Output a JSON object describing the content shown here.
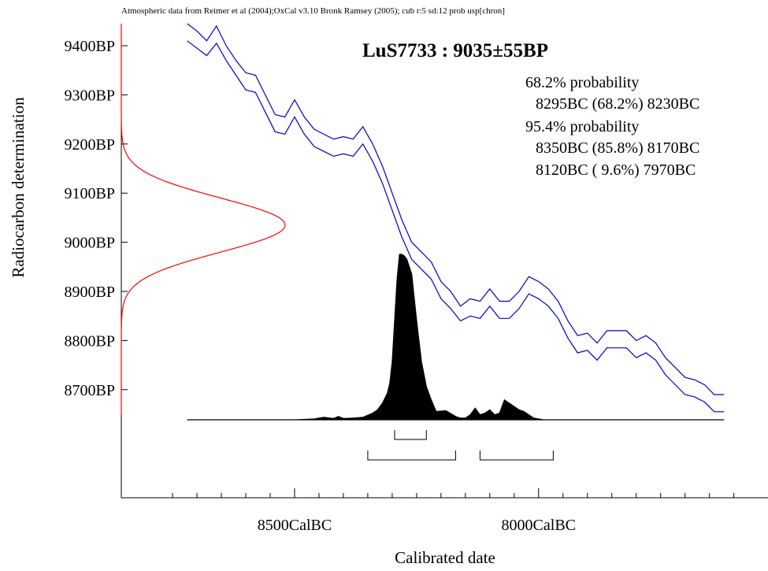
{
  "chart_data": {
    "type": "area",
    "header": "Atmospheric data from Reimer et al (2004);OxCal v3.10 Bronk Ramsey (2005); cub r:5 sd:12 prob usp[chron]",
    "title": "LuS7733 : 9035±55BP",
    "xlabel": "Calibrated date",
    "ylabel": "Radiocarbon determination",
    "x_ticks": [
      {
        "value": -8500,
        "label": "8500CalBC"
      },
      {
        "value": -8000,
        "label": "8000CalBC"
      }
    ],
    "x_minor_ticks": [
      -8750,
      -8700,
      -8650,
      -8600,
      -8550,
      -8450,
      -8400,
      -8350,
      -8300,
      -8250,
      -8200,
      -8150,
      -8100,
      -8050,
      -7950,
      -7900,
      -7850,
      -7800,
      -7750,
      -7700,
      -7650,
      -7600
    ],
    "xlim": [
      -8855,
      -7530
    ],
    "y_ticks": [
      {
        "value": 9400,
        "label": "9400BP"
      },
      {
        "value": 9300,
        "label": "9300BP"
      },
      {
        "value": 9200,
        "label": "9200BP"
      },
      {
        "value": 9100,
        "label": "9100BP"
      },
      {
        "value": 9000,
        "label": "9000BP"
      },
      {
        "value": 8900,
        "label": "8900BP"
      },
      {
        "value": 8800,
        "label": "8800BP"
      },
      {
        "value": 8700,
        "label": "8700BP"
      }
    ],
    "ylim": [
      8480,
      9445
    ],
    "radiocarbon_measurement": {
      "mean": 9035,
      "sd": 55,
      "color": "#ff0000"
    },
    "calibration_curve": {
      "color": "#0000cc",
      "x": [
        -8720,
        -8700,
        -8680,
        -8660,
        -8640,
        -8620,
        -8600,
        -8580,
        -8560,
        -8540,
        -8520,
        -8500,
        -8480,
        -8460,
        -8440,
        -8420,
        -8400,
        -8380,
        -8360,
        -8340,
        -8320,
        -8300,
        -8280,
        -8260,
        -8240,
        -8220,
        -8200,
        -8180,
        -8160,
        -8140,
        -8120,
        -8100,
        -8080,
        -8060,
        -8040,
        -8020,
        -8000,
        -7980,
        -7960,
        -7940,
        -7920,
        -7900,
        -7880,
        -7860,
        -7840,
        -7820,
        -7800,
        -7780,
        -7760,
        -7740,
        -7720,
        -7700,
        -7680,
        -7660,
        -7640,
        -7620
      ],
      "upper": [
        9445,
        9430,
        9410,
        9440,
        9400,
        9370,
        9345,
        9340,
        9300,
        9260,
        9255,
        9290,
        9255,
        9230,
        9220,
        9210,
        9215,
        9210,
        9235,
        9200,
        9155,
        9100,
        9045,
        9000,
        8980,
        8960,
        8920,
        8900,
        8870,
        8885,
        8880,
        8905,
        8880,
        8880,
        8900,
        8930,
        8920,
        8905,
        8880,
        8840,
        8810,
        8815,
        8795,
        8820,
        8820,
        8820,
        8800,
        8810,
        8795,
        8765,
        8745,
        8725,
        8720,
        8710,
        8690,
        8690
      ],
      "lower": [
        9410,
        9395,
        9380,
        9405,
        9370,
        9340,
        9310,
        9305,
        9265,
        9225,
        9220,
        9255,
        9220,
        9195,
        9185,
        9175,
        9180,
        9175,
        9200,
        9165,
        9120,
        9065,
        9010,
        8965,
        8945,
        8925,
        8885,
        8865,
        8840,
        8850,
        8845,
        8870,
        8845,
        8845,
        8865,
        8895,
        8885,
        8870,
        8845,
        8805,
        8775,
        8780,
        8760,
        8785,
        8785,
        8785,
        8765,
        8775,
        8760,
        8730,
        8710,
        8690,
        8685,
        8675,
        8655,
        8655
      ]
    },
    "probability_distribution": {
      "color": "#000000",
      "x": [
        -8720,
        -8500,
        -8460,
        -8440,
        -8420,
        -8410,
        -8400,
        -8380,
        -8360,
        -8340,
        -8330,
        -8320,
        -8310,
        -8305,
        -8300,
        -8295,
        -8290,
        -8285,
        -8280,
        -8275,
        -8270,
        -8260,
        -8250,
        -8240,
        -8230,
        -8220,
        -8210,
        -8190,
        -8170,
        -8160,
        -8150,
        -8140,
        -8130,
        -8120,
        -8110,
        -8100,
        -8090,
        -8080,
        -8070,
        -8060,
        -8050,
        -8040,
        -8030,
        -8020,
        -8010,
        -8000,
        -7990,
        -7980,
        -7970,
        -7960,
        -7950,
        -7620
      ],
      "density": [
        0,
        0,
        0.005,
        0.015,
        0.008,
        0.02,
        0.008,
        0.01,
        0.015,
        0.04,
        0.06,
        0.1,
        0.16,
        0.22,
        0.35,
        0.6,
        0.85,
        1.0,
        1.0,
        0.99,
        0.97,
        0.88,
        0.6,
        0.35,
        0.2,
        0.12,
        0.05,
        0.055,
        0.02,
        0.01,
        0.01,
        0.03,
        0.07,
        0.03,
        0.04,
        0.06,
        0.03,
        0.04,
        0.12,
        0.1,
        0.08,
        0.06,
        0.05,
        0.03,
        0.01,
        0.005,
        0,
        0,
        0,
        0,
        0,
        0
      ]
    },
    "ranges": {
      "68.2": [
        {
          "from": -8295,
          "to": -8230
        }
      ],
      "95.4": [
        {
          "from": -8350,
          "to": -8170
        },
        {
          "from": -8120,
          "to": -7970
        }
      ]
    },
    "legend_text": {
      "p68_heading": "68.2% probability",
      "p68_line1": "8295BC (68.2%) 8230BC",
      "p95_heading": "95.4% probability",
      "p95_line1": "8350BC (85.8%) 8170BC",
      "p95_line2": "8120BC ( 9.6%) 7970BC"
    }
  }
}
